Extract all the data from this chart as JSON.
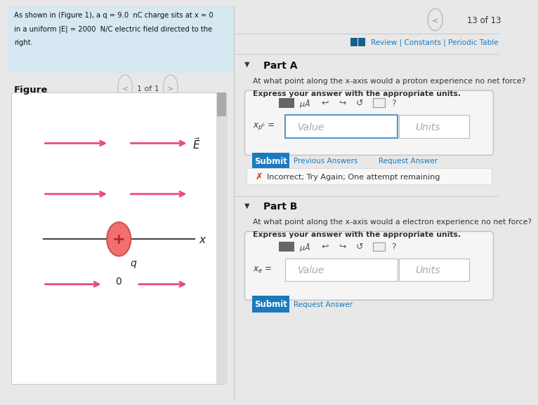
{
  "bg_color": "#e8e8e8",
  "left_panel_bg": "#f5f5f5",
  "right_panel_bg": "#ffffff",
  "header_bg": "#d6e8f2",
  "problem_text_line1": "As shown in (Figure 1), a q = 9.0  nC charge sits at x = 0",
  "problem_text_line2": "in a uniform |E| = 2000  N/C electric field directed to the",
  "problem_text_line3": "right.",
  "figure_label": "Figure",
  "nav_text": "1 of 1",
  "part_a_label": "Part A",
  "part_a_q": "At what point along the x-axis would a proton experience no net force?",
  "part_a_bold": "Express your answer with the appropriate units.",
  "value_placeholder": "Value",
  "units_placeholder": "Units",
  "submit_text": "Submit",
  "prev_ans_text": "Previous Answers",
  "req_ans_text": "Request Answer",
  "incorrect_text": "Incorrect; Try Again; One attempt remaining",
  "part_b_label": "Part B",
  "part_b_q": "At what point along the x-axis would a electron experience no net force?",
  "part_b_bold": "Express your answer with the appropriate units.",
  "submit_b_text": "Submit",
  "req_ans_b_text": "Request Answer",
  "nav_13": "13 of 13",
  "review_text": " Review | Constants | Periodic Table",
  "arrow_color": "#e8478a",
  "charge_fill": "#f07070",
  "charge_edge": "#d05050",
  "axis_color": "#444444",
  "submit_bg": "#1a7abf",
  "incorrect_color": "#cc2200",
  "link_color": "#1a7abf",
  "toolbar_box_bg": "#888888",
  "divider_color": "#cccccc",
  "input_box_bg": "#f5f5f5",
  "input_border": "#c0c0c0",
  "value_border": "#5599cc",
  "units_border": "#bbbbbb",
  "incorrect_box_bg": "#f8f8f8",
  "incorrect_box_border": "#dddddd"
}
